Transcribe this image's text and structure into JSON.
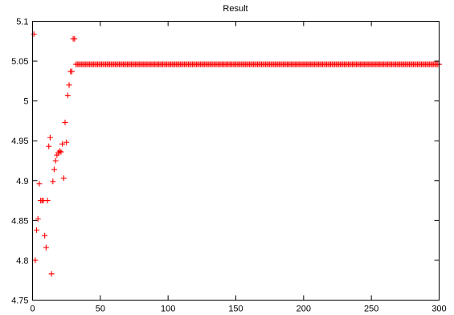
{
  "chart_data": {
    "type": "scatter",
    "title": "Result",
    "xlabel": "",
    "ylabel": "",
    "xlim": [
      0,
      300
    ],
    "ylim": [
      4.75,
      5.1
    ],
    "grid": false,
    "marker": "plus",
    "color": "#ff0000",
    "x_ticks": [
      {
        "value": 0,
        "label": "0"
      },
      {
        "value": 50,
        "label": "50"
      },
      {
        "value": 100,
        "label": "100"
      },
      {
        "value": 150,
        "label": "150"
      },
      {
        "value": 200,
        "label": "200"
      },
      {
        "value": 250,
        "label": "250"
      },
      {
        "value": 300,
        "label": "300"
      }
    ],
    "y_ticks": [
      {
        "value": 4.75,
        "label": "4.75"
      },
      {
        "value": 4.8,
        "label": "4.8"
      },
      {
        "value": 4.85,
        "label": "4.85"
      },
      {
        "value": 4.9,
        "label": "4.9"
      },
      {
        "value": 4.95,
        "label": "4.95"
      },
      {
        "value": 5,
        "label": "5"
      },
      {
        "value": 5.05,
        "label": "5.05"
      },
      {
        "value": 5.1,
        "label": "5.1"
      }
    ],
    "series": [
      {
        "points": [
          [
            1,
            5.084
          ],
          [
            2,
            4.8
          ],
          [
            3,
            4.838
          ],
          [
            4,
            4.852
          ],
          [
            5,
            4.896
          ],
          [
            6,
            4.875
          ],
          [
            7,
            4.875
          ],
          [
            8,
            4.875
          ],
          [
            9,
            4.831
          ],
          [
            10,
            4.816
          ],
          [
            11,
            4.875
          ],
          [
            12,
            4.943
          ],
          [
            13,
            4.954
          ],
          [
            14,
            4.783
          ],
          [
            15,
            4.899
          ],
          [
            16,
            4.914
          ],
          [
            17,
            4.925
          ],
          [
            18,
            4.932
          ],
          [
            19,
            4.935
          ],
          [
            20,
            4.937
          ],
          [
            21,
            4.936
          ],
          [
            22,
            4.946
          ],
          [
            23,
            4.903
          ],
          [
            24,
            4.973
          ],
          [
            25,
            4.948
          ],
          [
            26,
            5.007
          ],
          [
            27,
            5.02
          ],
          [
            28,
            5.037
          ],
          [
            29,
            5.037
          ],
          [
            30,
            5.078
          ],
          [
            31,
            5.078
          ],
          [
            32,
            5.046
          ]
        ],
        "plateau": {
          "x_start": 33,
          "x_end": 300,
          "y": 5.046
        }
      }
    ]
  }
}
